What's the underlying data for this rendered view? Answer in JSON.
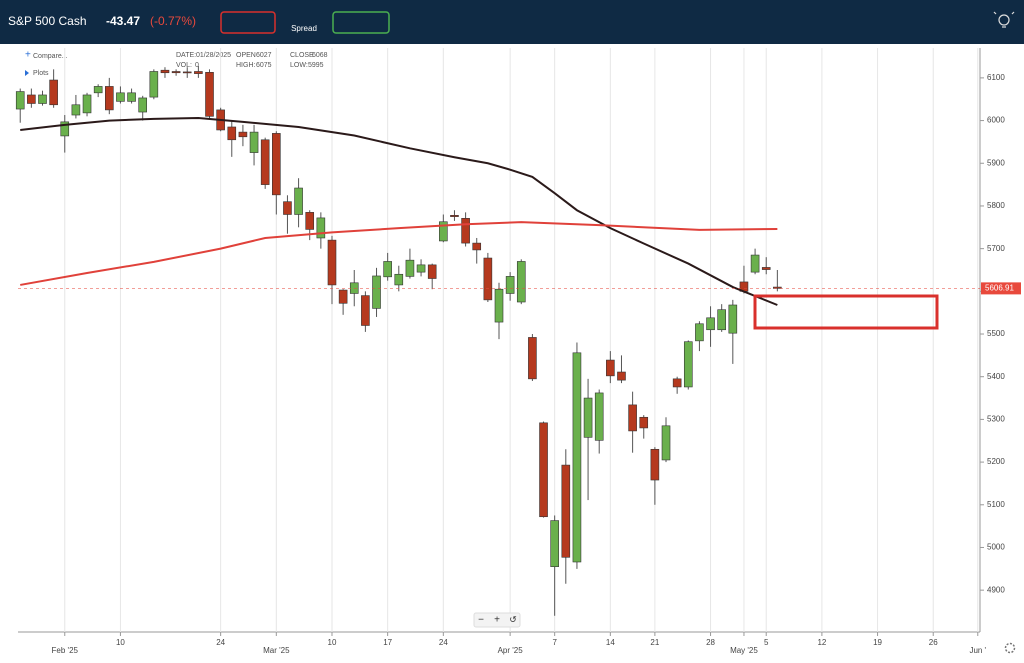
{
  "header": {
    "instrument": "S&P 500 Cash",
    "change": "-43.47",
    "change_pct": "(-0.77%)",
    "spread_label": "Spread"
  },
  "toolbar": {
    "compare": "Compare...",
    "plots": "Plots"
  },
  "info": {
    "date_label": "DATE:",
    "date": "01/28/2025",
    "open_label": "OPEN",
    "close_label": "CLOSE",
    "vol_label": "VOL:",
    "vol": 0,
    "high_label": "HIGH:",
    "low_label": "LOW:"
  },
  "zoom_controls": [
    "−",
    "+",
    "↺"
  ],
  "chart_data": {
    "type": "candlestick",
    "x": [
      0,
      1,
      2,
      3,
      4,
      5,
      6,
      7,
      8,
      9,
      10,
      11,
      12,
      13,
      14,
      15,
      16,
      17,
      18,
      19,
      20,
      21,
      22,
      23,
      24,
      25,
      26,
      27,
      28,
      29,
      30,
      31,
      32,
      33,
      34,
      35,
      36,
      37,
      38,
      39,
      40,
      41,
      42,
      43,
      44,
      45,
      46,
      47,
      48,
      49,
      50,
      51,
      52,
      53,
      54,
      55,
      56,
      57,
      58,
      59,
      60,
      61,
      62,
      63,
      64,
      65,
      66,
      67,
      68
    ],
    "open": [
      6027,
      6060,
      6040,
      6095,
      5964,
      6013,
      6018,
      6065,
      6080,
      6045,
      6045,
      6020,
      6055,
      6118,
      6115,
      6114,
      6115,
      6113,
      6025,
      5985,
      5973,
      5925,
      5955,
      5970,
      5810,
      5780,
      5785,
      5725,
      5720,
      5603,
      5595,
      5590,
      5560,
      5634,
      5615,
      5635,
      5645,
      5662,
      5718,
      5778,
      5771,
      5713,
      5678,
      5528,
      5595,
      5575,
      5492,
      5292,
      4955,
      5193,
      4966,
      5258,
      5251,
      5439,
      5411,
      5334,
      5305,
      5230,
      5205,
      5395,
      5376,
      5484,
      5510,
      5510,
      5502,
      5622,
      5645,
      5656,
      5610
    ],
    "high": [
      6075,
      6075,
      6070,
      6120,
      6013,
      6060,
      6065,
      6085,
      6100,
      6080,
      6075,
      6058,
      6120,
      6125,
      6120,
      6125,
      6128,
      6120,
      6030,
      6000,
      5990,
      5990,
      5960,
      5975,
      5825,
      5865,
      5790,
      5785,
      5730,
      5605,
      5650,
      5600,
      5655,
      5690,
      5660,
      5700,
      5675,
      5665,
      5780,
      5790,
      5785,
      5725,
      5690,
      5620,
      5645,
      5675,
      5500,
      5295,
      5075,
      5230,
      5480,
      5395,
      5370,
      5460,
      5450,
      5365,
      5310,
      5235,
      5305,
      5400,
      5485,
      5530,
      5565,
      5570,
      5580,
      5660,
      5700,
      5680,
      5650
    ],
    "low": [
      5995,
      6030,
      6035,
      6030,
      5925,
      6005,
      6010,
      6055,
      6015,
      6040,
      6040,
      6000,
      6050,
      6100,
      6105,
      6100,
      6100,
      6005,
      5975,
      5915,
      5940,
      5895,
      5840,
      5780,
      5735,
      5750,
      5720,
      5700,
      5570,
      5545,
      5565,
      5505,
      5540,
      5625,
      5600,
      5630,
      5635,
      5605,
      5715,
      5765,
      5705,
      5665,
      5575,
      5488,
      5578,
      5570,
      5390,
      5070,
      4840,
      4915,
      4950,
      5111,
      5220,
      5385,
      5385,
      5222,
      5255,
      5100,
      5200,
      5360,
      5370,
      5460,
      5470,
      5505,
      5430,
      5595,
      5640,
      5640,
      5600
    ],
    "close": [
      6068,
      6040,
      6060,
      6037,
      5997,
      6037,
      6060,
      6080,
      6025,
      6065,
      6065,
      6053,
      6115,
      6112,
      6112,
      6112,
      6110,
      6010,
      5978,
      5955,
      5962,
      5973,
      5850,
      5826,
      5780,
      5842,
      5745,
      5772,
      5615,
      5572,
      5620,
      5520,
      5636,
      5670,
      5640,
      5673,
      5662,
      5630,
      5763,
      5775,
      5713,
      5697,
      5580,
      5605,
      5635,
      5670,
      5395,
      5072,
      5063,
      4977,
      5456,
      5350,
      5362,
      5402,
      5392,
      5273,
      5280,
      5158,
      5285,
      5376,
      5482,
      5524,
      5538,
      5557,
      5568,
      5600,
      5685,
      5651,
      5606.91
    ],
    "up_color": "#6ab04c",
    "down_color": "#b5391e",
    "overlays": [
      {
        "color": "#2b1a1a",
        "x": [
          0,
          4,
          8,
          12,
          16,
          20,
          25,
          30,
          35,
          39,
          42,
          44,
          46,
          48,
          50,
          53,
          56,
          60,
          64,
          68
        ],
        "values": [
          5978,
          5990,
          6000,
          6004,
          6006,
          5997,
          5985,
          5965,
          5935,
          5914,
          5900,
          5885,
          5868,
          5830,
          5790,
          5748,
          5712,
          5665,
          5610,
          5568
        ]
      },
      {
        "color": "#e0413a",
        "x": [
          0,
          6,
          12,
          18,
          22,
          28,
          34,
          40,
          45,
          52,
          61,
          68
        ],
        "values": [
          5615,
          5643,
          5669,
          5700,
          5725,
          5738,
          5748,
          5757,
          5762,
          5755,
          5744,
          5746
        ]
      }
    ],
    "last_price_color": "#e8493c",
    "xlim": [
      -0.2,
      86.2
    ],
    "xticks": [
      {
        "value": 4,
        "label": "Feb '25"
      },
      {
        "value": 9,
        "label": "10"
      },
      {
        "value": 18,
        "label": "24"
      },
      {
        "value": 23,
        "label": "Mar '25"
      },
      {
        "value": 28,
        "label": "10"
      },
      {
        "value": 33,
        "label": "17"
      },
      {
        "value": 38,
        "label": "24"
      },
      {
        "value": 44,
        "label": "Apr '25"
      },
      {
        "value": 48,
        "label": "7"
      },
      {
        "value": 53,
        "label": "14"
      },
      {
        "value": 57,
        "label": "21"
      },
      {
        "value": 62,
        "label": "28"
      },
      {
        "value": 65,
        "label": "May '25"
      },
      {
        "value": 67,
        "label": "5"
      },
      {
        "value": 72,
        "label": "12"
      },
      {
        "value": 77,
        "label": "19"
      },
      {
        "value": 82,
        "label": "26"
      },
      {
        "value": 86,
        "label": "Jun '"
      }
    ],
    "ylim": [
      4802,
      6170
    ],
    "yticks": [
      4900,
      5000,
      5100,
      5200,
      5300,
      5400,
      5500,
      5600,
      5700,
      5800,
      5900,
      6000,
      6100
    ],
    "grid": "x"
  }
}
